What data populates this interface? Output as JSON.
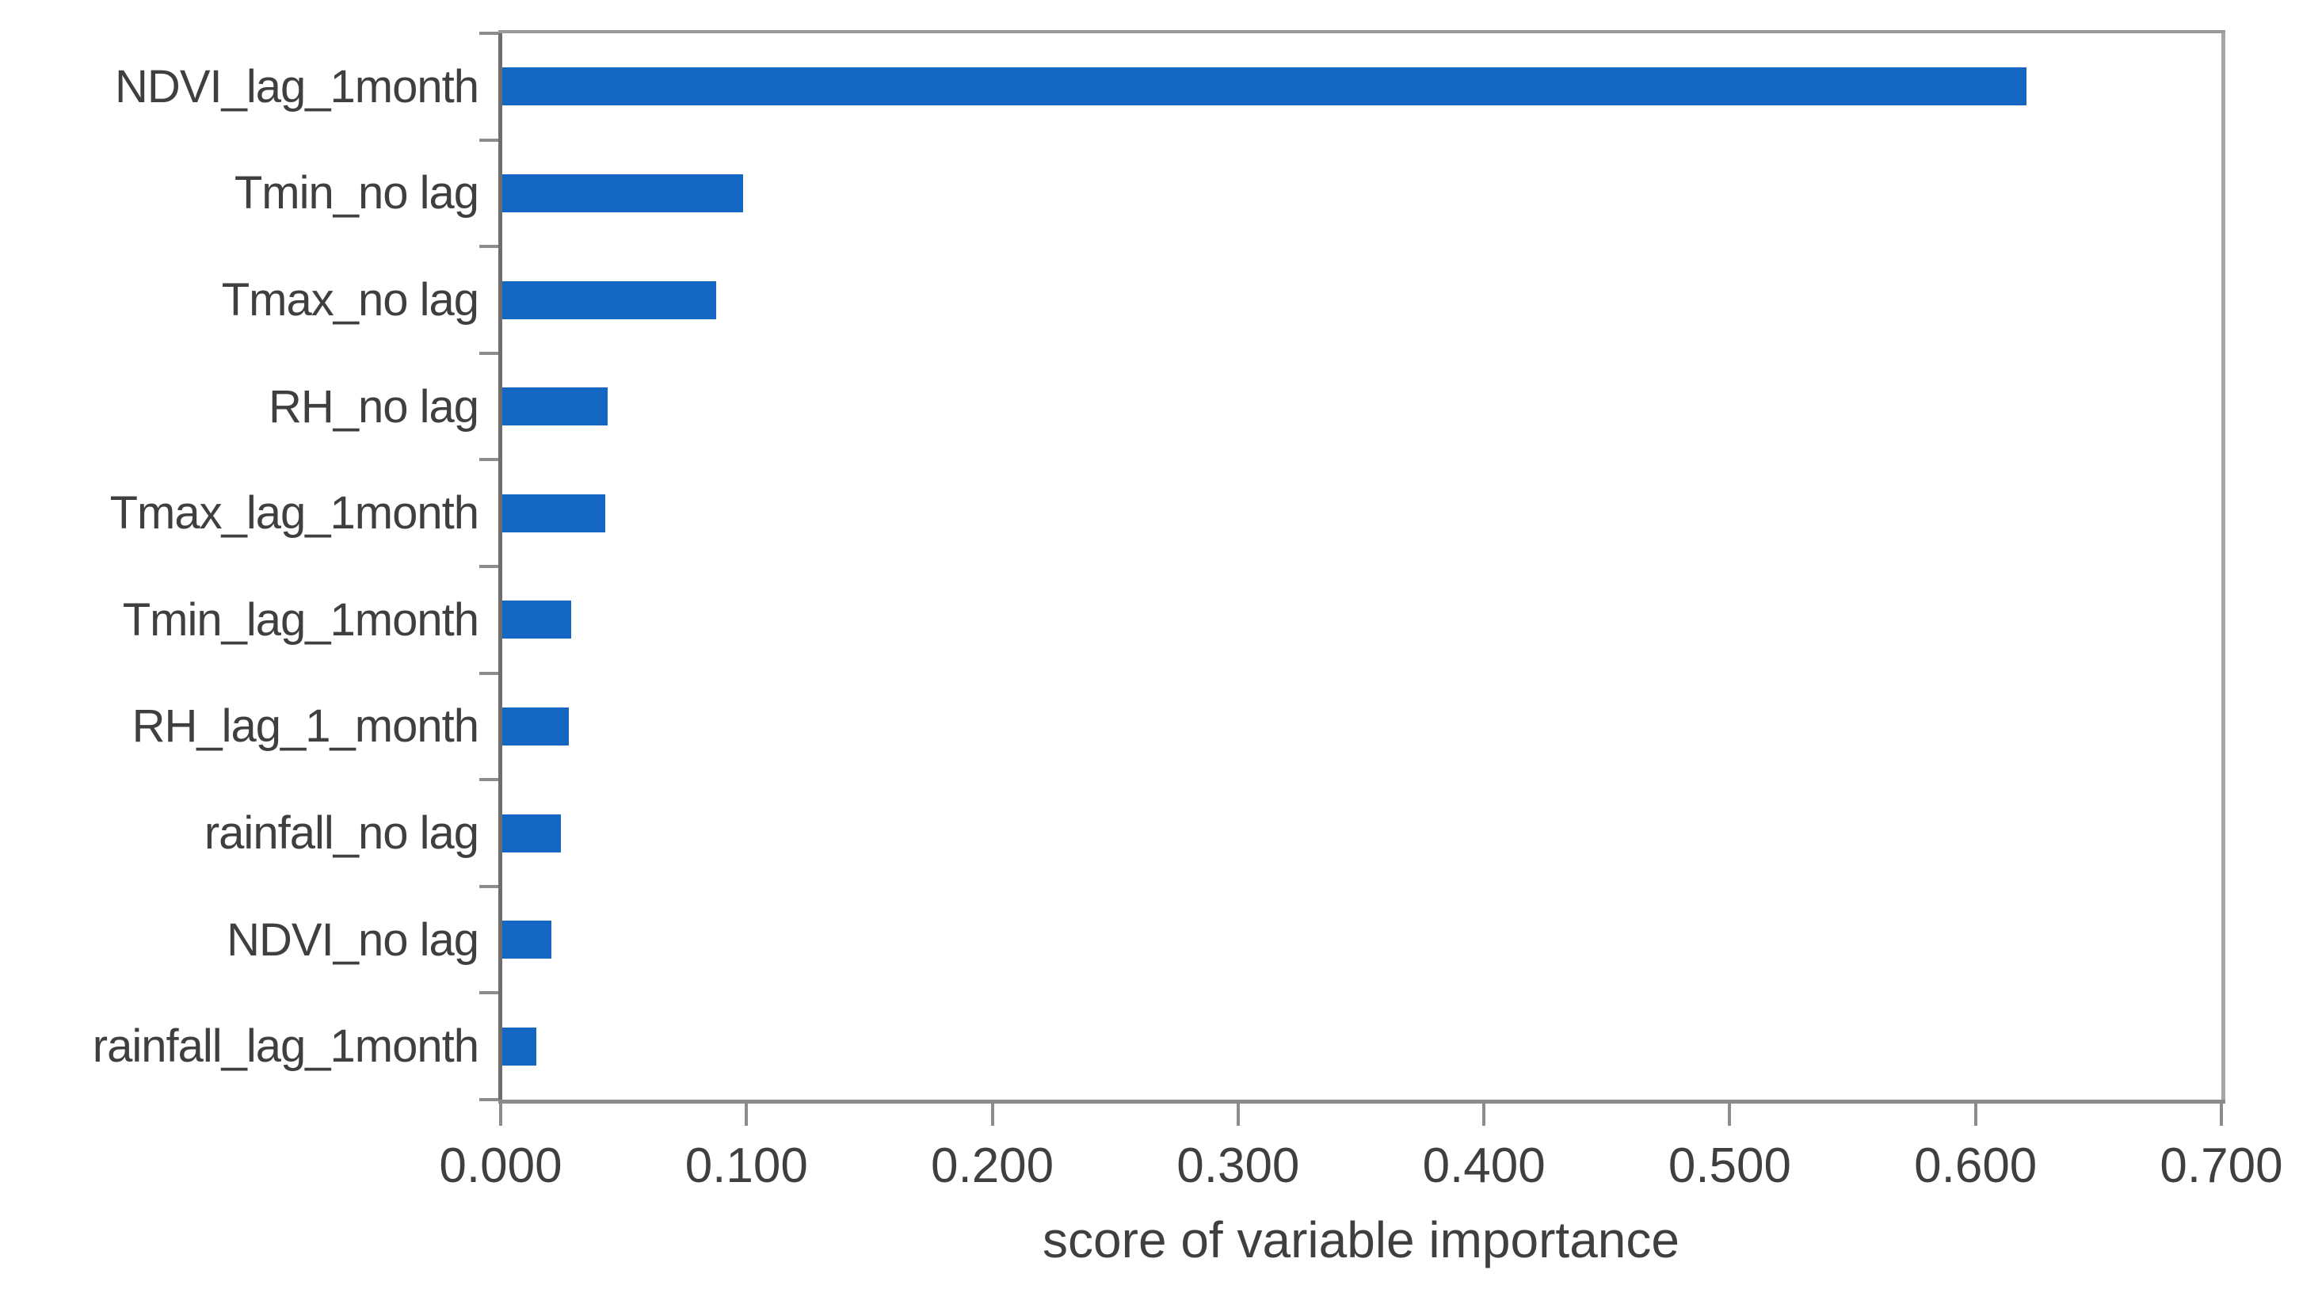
{
  "chart_data": {
    "type": "bar",
    "orientation": "horizontal",
    "title": "",
    "xlabel": "score of variable importance",
    "ylabel": "",
    "categories": [
      "NDVI_lag_1month",
      "Tmin_no lag",
      "Tmax_no lag",
      "RH_no lag",
      "Tmax_lag_1month",
      "Tmin_lag_1month",
      "RH_lag_1_month",
      "rainfall_no lag",
      "NDVI_no lag",
      "rainfall_lag_1month"
    ],
    "values": [
      0.62,
      0.098,
      0.087,
      0.043,
      0.042,
      0.028,
      0.027,
      0.024,
      0.02,
      0.014
    ],
    "xlim": [
      0.0,
      0.7
    ],
    "xtick_labels": [
      "0.000",
      "0.100",
      "0.200",
      "0.300",
      "0.400",
      "0.500",
      "0.600",
      "0.700"
    ],
    "grid": false,
    "legend": false,
    "colors": {
      "bar": "#1468c4",
      "text": "#3f3f3f",
      "axis_left": "#6e6e6e",
      "axis_bottom": "#8a8a8a",
      "border_top": "#9a9a9a",
      "border_right": "#a6a6a6",
      "tick": "#8c8c8c",
      "background": "#ffffff"
    }
  }
}
